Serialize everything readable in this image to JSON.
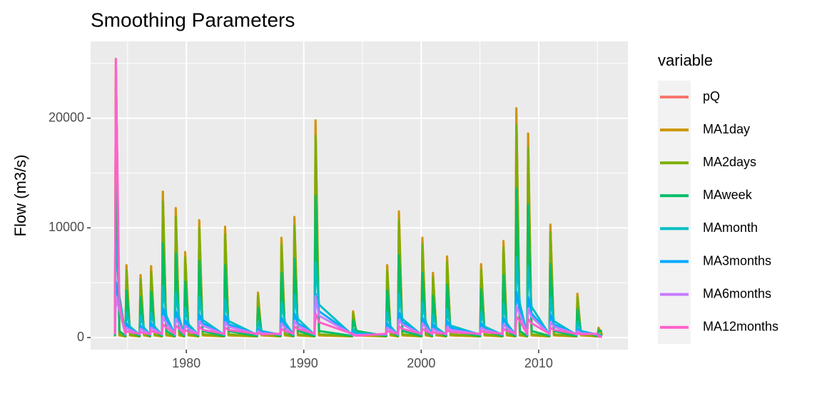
{
  "chart_data": {
    "type": "line",
    "title": "Smoothing Parameters",
    "y_label": "Flow (m3/s)",
    "legend_title": "variable",
    "xlim": [
      1971.85,
      2017.6
    ],
    "xticks": [
      1980,
      1990,
      2000,
      2010
    ],
    "xminor": [
      1975,
      1985,
      1995,
      2005,
      2015
    ],
    "ylim": [
      -1100,
      27000
    ],
    "yticks": [
      0,
      10000,
      20000
    ],
    "yminor": [
      5000,
      15000,
      25000
    ],
    "grid": true,
    "legend": "right",
    "x": [
      1973.92,
      1974.0,
      1974.3,
      1974.82,
      1974.9,
      1975.2,
      1976.02,
      1976.1,
      1976.4,
      1976.92,
      1977.0,
      1977.3,
      1977.92,
      1978.0,
      1978.3,
      1979.02,
      1979.1,
      1979.4,
      1979.82,
      1979.9,
      1980.2,
      1981.02,
      1981.1,
      1981.4,
      1983.22,
      1983.3,
      1983.6,
      1986.02,
      1986.1,
      1986.4,
      1988.02,
      1988.1,
      1988.4,
      1989.12,
      1989.2,
      1989.5,
      1990.92,
      1991.0,
      1991.3,
      1994.12,
      1994.2,
      1994.5,
      1997.02,
      1997.1,
      1997.4,
      1998.02,
      1998.1,
      1998.4,
      2000.02,
      2000.1,
      2000.4,
      2000.92,
      2001.0,
      2001.3,
      2002.12,
      2002.2,
      2002.5,
      2005.02,
      2005.1,
      2005.4,
      2006.92,
      2007.0,
      2007.3,
      2008.02,
      2008.1,
      2008.4,
      2009.02,
      2009.1,
      2009.4,
      2010.92,
      2011.0,
      2011.3,
      2013.22,
      2013.3,
      2013.6,
      2015.02,
      2015.1,
      2015.4
    ],
    "series": [
      {
        "name": "pQ",
        "color": "#F8766D",
        "values": [
          100,
          25400,
          200,
          100,
          6600,
          200,
          100,
          5700,
          200,
          100,
          6500,
          200,
          100,
          13300,
          200,
          100,
          11800,
          200,
          100,
          7800,
          200,
          100,
          10700,
          200,
          100,
          10100,
          200,
          100,
          4100,
          200,
          100,
          9100,
          200,
          100,
          11000,
          200,
          100,
          19800,
          200,
          100,
          2400,
          200,
          100,
          6600,
          200,
          100,
          11500,
          200,
          100,
          9100,
          200,
          100,
          5900,
          200,
          100,
          7400,
          200,
          100,
          6700,
          200,
          100,
          8800,
          200,
          100,
          20900,
          200,
          100,
          18600,
          200,
          100,
          10300,
          200,
          100,
          4000,
          200,
          100,
          900,
          200
        ]
      },
      {
        "name": "MA1day",
        "color": "#CD9600",
        "values": [
          100,
          25400,
          200,
          100,
          6600,
          200,
          100,
          5700,
          200,
          100,
          6500,
          200,
          100,
          13300,
          200,
          100,
          11800,
          200,
          100,
          7800,
          200,
          100,
          10700,
          200,
          100,
          10100,
          200,
          100,
          4100,
          200,
          100,
          9100,
          200,
          100,
          11000,
          200,
          100,
          19800,
          200,
          100,
          2400,
          200,
          100,
          6600,
          200,
          100,
          11500,
          200,
          100,
          9100,
          200,
          100,
          5900,
          200,
          100,
          7400,
          200,
          100,
          6700,
          200,
          100,
          8800,
          200,
          100,
          20900,
          200,
          100,
          18600,
          200,
          100,
          10300,
          200,
          100,
          4000,
          200,
          100,
          900,
          200
        ]
      },
      {
        "name": "MA2days",
        "color": "#7CAE00",
        "values": [
          120,
          23600,
          300,
          120,
          6100,
          300,
          120,
          5300,
          300,
          120,
          6000,
          300,
          120,
          12400,
          300,
          120,
          11000,
          300,
          120,
          7300,
          300,
          120,
          10000,
          300,
          120,
          9400,
          300,
          120,
          3800,
          300,
          120,
          8500,
          300,
          120,
          10200,
          300,
          120,
          18400,
          300,
          120,
          2200,
          300,
          120,
          6100,
          300,
          120,
          10700,
          300,
          120,
          8500,
          300,
          120,
          5500,
          300,
          120,
          6900,
          300,
          120,
          6200,
          300,
          120,
          8200,
          300,
          120,
          19400,
          300,
          120,
          17300,
          300,
          120,
          9600,
          300,
          120,
          3700,
          300,
          120,
          800,
          300
        ]
      },
      {
        "name": "MAweek",
        "color": "#00BE67",
        "values": [
          150,
          16500,
          600,
          150,
          4300,
          600,
          150,
          3700,
          600,
          150,
          4200,
          600,
          150,
          8600,
          600,
          150,
          7700,
          600,
          150,
          5100,
          600,
          150,
          7000,
          600,
          150,
          6600,
          600,
          150,
          2700,
          600,
          150,
          5900,
          600,
          150,
          7200,
          600,
          150,
          12900,
          600,
          150,
          1600,
          600,
          150,
          4300,
          600,
          150,
          7500,
          600,
          150,
          5900,
          600,
          150,
          3800,
          600,
          150,
          4800,
          600,
          150,
          4400,
          600,
          150,
          5700,
          600,
          150,
          13600,
          600,
          150,
          12100,
          600,
          150,
          6700,
          600,
          150,
          2600,
          600,
          150,
          600,
          600
        ]
      },
      {
        "name": "MAmonth",
        "color": "#00BFC4",
        "values": [
          250,
          8900,
          3800,
          250,
          2300,
          1000,
          250,
          2000,
          900,
          250,
          2300,
          1000,
          250,
          4700,
          2000,
          250,
          4100,
          1800,
          250,
          2700,
          1200,
          250,
          3700,
          1600,
          250,
          3500,
          1500,
          250,
          1400,
          600,
          250,
          3200,
          1400,
          250,
          3900,
          1700,
          250,
          6900,
          3000,
          250,
          800,
          400,
          250,
          2300,
          1000,
          250,
          4000,
          1700,
          250,
          3200,
          1400,
          250,
          2100,
          900,
          250,
          2600,
          1100,
          250,
          2300,
          1000,
          250,
          3100,
          1300,
          250,
          7300,
          3100,
          250,
          6500,
          2800,
          250,
          3600,
          1500,
          250,
          1400,
          600,
          250,
          300,
          150
        ]
      },
      {
        "name": "MA3months",
        "color": "#00A9FF",
        "values": [
          300,
          5100,
          3000,
          300,
          1300,
          800,
          300,
          1100,
          700,
          300,
          1300,
          800,
          300,
          2700,
          1600,
          300,
          2400,
          1400,
          300,
          1600,
          900,
          300,
          2100,
          1300,
          300,
          2000,
          1200,
          300,
          800,
          500,
          300,
          1800,
          1100,
          300,
          2200,
          1300,
          300,
          4000,
          2400,
          300,
          500,
          300,
          300,
          1300,
          800,
          300,
          2300,
          1400,
          300,
          1800,
          1100,
          300,
          1200,
          700,
          300,
          1500,
          900,
          300,
          1300,
          800,
          300,
          1800,
          1100,
          300,
          4200,
          2500,
          300,
          3700,
          2200,
          300,
          2100,
          1200,
          300,
          800,
          500,
          300,
          200,
          100
        ]
      },
      {
        "name": "MA6months",
        "color": "#C77CFF",
        "values": [
          300,
          3600,
          2500,
          300,
          900,
          700,
          300,
          800,
          600,
          300,
          900,
          700,
          300,
          1900,
          1300,
          300,
          1700,
          1200,
          300,
          1100,
          800,
          300,
          1500,
          1100,
          300,
          1400,
          1000,
          300,
          600,
          400,
          300,
          1300,
          900,
          300,
          1500,
          1100,
          300,
          3800,
          2000,
          300,
          300,
          240,
          300,
          900,
          700,
          300,
          1600,
          1200,
          300,
          1300,
          900,
          300,
          800,
          600,
          300,
          1000,
          700,
          300,
          900,
          700,
          300,
          1200,
          900,
          300,
          2900,
          2100,
          300,
          2600,
          1900,
          300,
          1400,
          1000,
          300,
          600,
          400,
          300,
          130,
          90
        ]
      },
      {
        "name": "MA12months",
        "color": "#FF61CC",
        "values": [
          350,
          25400,
          3000,
          350,
          600,
          500,
          350,
          500,
          400,
          350,
          600,
          500,
          350,
          1200,
          900,
          350,
          1100,
          800,
          350,
          700,
          500,
          350,
          1000,
          700,
          350,
          900,
          700,
          350,
          400,
          300,
          350,
          800,
          600,
          350,
          1000,
          800,
          350,
          2200,
          1400,
          350,
          220,
          170,
          350,
          600,
          500,
          350,
          1000,
          800,
          350,
          800,
          600,
          350,
          500,
          400,
          350,
          700,
          500,
          350,
          600,
          500,
          350,
          800,
          600,
          350,
          1900,
          1500,
          350,
          1700,
          1300,
          350,
          900,
          700,
          350,
          400,
          300,
          350,
          80,
          60
        ]
      }
    ]
  }
}
